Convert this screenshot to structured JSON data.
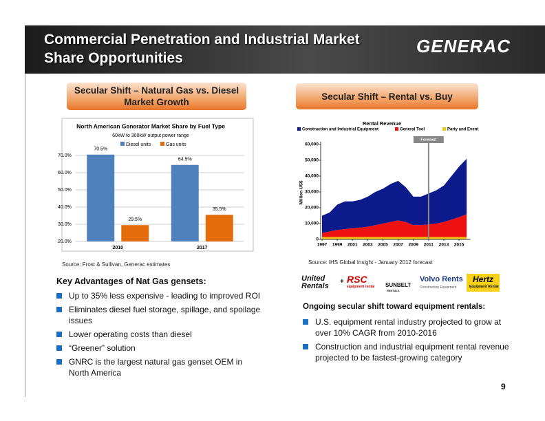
{
  "header": {
    "title": "Commercial Penetration and Industrial Market Share Opportunities",
    "logo": "GENERAC"
  },
  "left": {
    "heading": "Secular Shift – Natural Gas vs. Diesel Market Growth",
    "source": "Source: Frost & Sullivan, Generac estimates",
    "list_title": "Key Advantages of Nat Gas gensets:",
    "bullets": [
      "Up to 35% less expensive - leading to improved ROI",
      "Eliminates diesel fuel storage, spillage, and spoilage issues",
      "Lower operating costs than diesel",
      "“Greener” solution",
      "GNRC is the largest natural gas genset OEM in North America"
    ]
  },
  "right": {
    "heading": "Secular Shift – Rental vs. Buy",
    "source": "Source: IHS Global Insight  - January 2012 forecast",
    "logos": [
      {
        "name": "United Rentals"
      },
      {
        "name": "+"
      },
      {
        "name": "RSC",
        "sub": "equipment rental"
      },
      {
        "name": "SUNBELT",
        "sub": "RENTALS"
      },
      {
        "name": "Volvo Rents",
        "sub": "Construction Equipment"
      },
      {
        "name": "Hertz",
        "sub": "Equipment Rental"
      }
    ],
    "list_title": "Ongoing secular shift toward equipment rentals:",
    "bullets": [
      "U.S. equipment rental industry projected to grow at over 10% CAGR from 2010-2016",
      "Construction and industrial equipment rental revenue projected to be fastest-growing category"
    ]
  },
  "page_number": "9",
  "chart_data": [
    {
      "type": "bar",
      "title": "North American Generator Market Share by Fuel Type",
      "subtitle": "60kW to 300kW output power range",
      "categories": [
        "2010",
        "2017"
      ],
      "series": [
        {
          "name": "Diesel units",
          "color": "#4f81bd",
          "values": [
            70.5,
            64.5
          ],
          "value_labels": [
            "70.5%",
            "64.5%"
          ]
        },
        {
          "name": "Gas units",
          "color": "#e46c0a",
          "values": [
            29.5,
            35.5
          ],
          "value_labels": [
            "29.5%",
            "35.5%"
          ]
        }
      ],
      "ylim": [
        20,
        70
      ],
      "yticks": [
        {
          "value": 20,
          "label": "20.0%"
        },
        {
          "value": 30,
          "label": "30.0%"
        },
        {
          "value": 40,
          "label": "40.0%"
        },
        {
          "value": 50,
          "label": "50.0%"
        },
        {
          "value": 60,
          "label": "60.0%"
        },
        {
          "value": 70,
          "label": "70.0%"
        }
      ],
      "grid": true,
      "legend": "top"
    },
    {
      "type": "stacked-area",
      "title": "Rental Revenue",
      "y_label": "Million US$",
      "x": [
        1997,
        1998,
        1999,
        2000,
        2001,
        2002,
        2003,
        2004,
        2005,
        2006,
        2007,
        2008,
        2009,
        2010,
        2011,
        2012,
        2013,
        2014,
        2015,
        2016
      ],
      "series": [
        {
          "name": "Construction and Industrial Equipment",
          "color": "#0d1a8c",
          "values": [
            11000,
            12000,
            16000,
            17500,
            17000,
            17500,
            19000,
            21000,
            22000,
            24000,
            25000,
            22000,
            18000,
            18000,
            19500,
            21000,
            23000,
            27500,
            32000,
            35000
          ]
        },
        {
          "name": "General Tool",
          "color": "#ee1111",
          "values": [
            2500,
            3500,
            4500,
            5000,
            5500,
            6000,
            6500,
            7500,
            8500,
            9500,
            10500,
            9500,
            7500,
            7500,
            8000,
            8500,
            9500,
            11000,
            12500,
            14500
          ]
        },
        {
          "name": "Party and Event",
          "color": "#f2c416",
          "values": [
            1500,
            1500,
            1500,
            1500,
            1500,
            1500,
            1500,
            1500,
            1500,
            1500,
            1500,
            1500,
            1500,
            1500,
            1500,
            1500,
            1500,
            1500,
            1500,
            1500
          ]
        }
      ],
      "xlim": [
        1997,
        2016.5
      ],
      "xticks": [
        1997,
        1999,
        2001,
        2003,
        2005,
        2007,
        2009,
        2011,
        2013,
        2015
      ],
      "ylim": [
        0,
        60000
      ],
      "yticks": [
        0,
        {
          "value": 10000,
          "label": "10,000"
        },
        {
          "value": 20000,
          "label": "20,000"
        },
        {
          "value": 30000,
          "label": "30,000"
        },
        {
          "value": 40000,
          "label": "40,000"
        },
        {
          "value": 50000,
          "label": "50,000"
        },
        {
          "value": 60000,
          "label": "60,000"
        }
      ],
      "annotation": {
        "text": "Forecast",
        "x": 2011
      },
      "legend": "top"
    }
  ]
}
